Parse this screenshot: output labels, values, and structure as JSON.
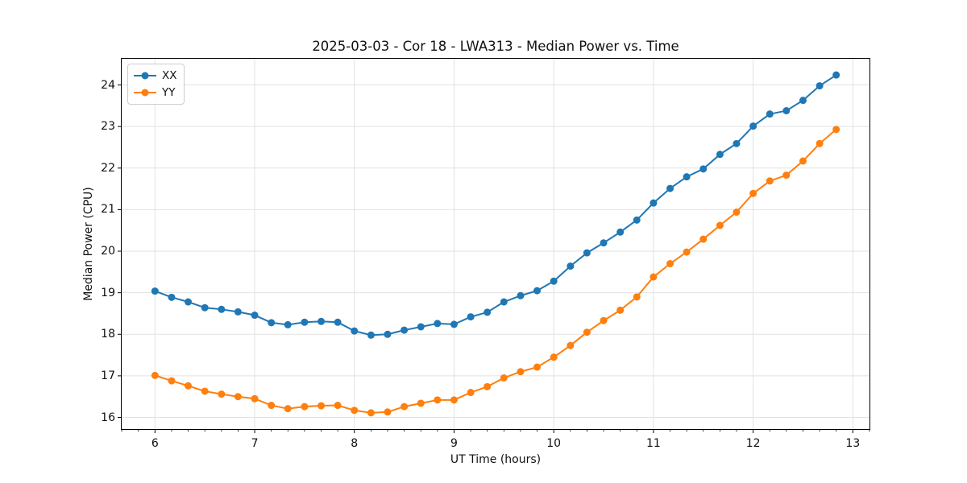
{
  "chart_data": {
    "type": "line",
    "title": "2025-03-03 - Cor 18 - LWA313 - Median Power vs. Time",
    "xlabel": "UT Time (hours)",
    "ylabel": "Median Power (CPU)",
    "xlim": [
      5.658,
      13.175
    ],
    "ylim": [
      15.7,
      24.65
    ],
    "xticks": [
      6,
      7,
      8,
      9,
      10,
      11,
      12,
      13
    ],
    "yticks": [
      16,
      17,
      18,
      19,
      20,
      21,
      22,
      23,
      24
    ],
    "x_minor_step": 0.166667,
    "grid": true,
    "legend_position": "upper-left",
    "grid_color": "#e2e2e2",
    "spine_color": "#000000",
    "tick_color": "#000000",
    "marker": "circle",
    "marker_radius": 4.5,
    "line_width": 2,
    "x": [
      6.0,
      6.167,
      6.333,
      6.5,
      6.667,
      6.833,
      7.0,
      7.167,
      7.333,
      7.5,
      7.667,
      7.833,
      8.0,
      8.167,
      8.333,
      8.5,
      8.667,
      8.833,
      9.0,
      9.167,
      9.333,
      9.5,
      9.667,
      9.833,
      10.0,
      10.167,
      10.333,
      10.5,
      10.667,
      10.833,
      11.0,
      11.167,
      11.333,
      11.5,
      11.667,
      11.833,
      12.0,
      12.167,
      12.333,
      12.5,
      12.667,
      12.833
    ],
    "series": [
      {
        "name": "XX",
        "color": "#1f77b4",
        "values": [
          19.04,
          18.89,
          18.78,
          18.64,
          18.6,
          18.54,
          18.46,
          18.28,
          18.23,
          18.29,
          18.31,
          18.29,
          18.08,
          17.98,
          18.0,
          18.1,
          18.18,
          18.26,
          18.24,
          18.42,
          18.53,
          18.78,
          18.93,
          19.05,
          19.28,
          19.64,
          19.96,
          20.2,
          20.46,
          20.75,
          21.16,
          21.51,
          21.79,
          21.98,
          22.33,
          22.59,
          23.01,
          23.3,
          23.38,
          23.63,
          23.98,
          24.24
        ]
      },
      {
        "name": "YY",
        "color": "#ff7f0e",
        "values": [
          17.01,
          16.88,
          16.76,
          16.63,
          16.56,
          16.5,
          16.45,
          16.29,
          16.21,
          16.26,
          16.28,
          16.29,
          16.17,
          16.11,
          16.13,
          16.26,
          16.34,
          16.42,
          16.42,
          16.6,
          16.74,
          16.95,
          17.1,
          17.21,
          17.45,
          17.73,
          18.05,
          18.33,
          18.58,
          18.9,
          19.38,
          19.7,
          19.98,
          20.29,
          20.62,
          20.94,
          21.39,
          21.69,
          21.83,
          22.17,
          22.59,
          22.93
        ]
      }
    ]
  }
}
